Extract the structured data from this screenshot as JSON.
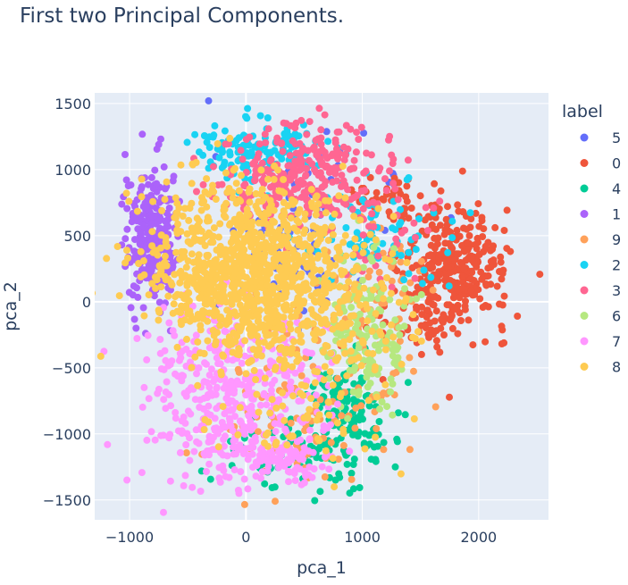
{
  "chart_data": {
    "type": "scatter",
    "title": "First two Principal Components.",
    "xlabel": "pca_1",
    "ylabel": "pca_2",
    "xlim": [
      -1300,
      2600
    ],
    "ylim": [
      -1650,
      1580
    ],
    "xticks": [
      -1000,
      0,
      1000,
      2000
    ],
    "xtick_labels": [
      "−1000",
      "0",
      "1000",
      "2000"
    ],
    "yticks": [
      -1500,
      -1000,
      -500,
      0,
      500,
      1000,
      1500
    ],
    "ytick_labels": [
      "−1500",
      "−1000",
      "−500",
      "0",
      "500",
      "1000",
      "1500"
    ],
    "grid": true,
    "legend": {
      "title": "label",
      "placement": "right"
    },
    "series": [
      {
        "name": "5",
        "color": "#636efa",
        "clusters": [
          {
            "cx": 400,
            "cy": 500,
            "sx": 350,
            "sy": 350,
            "n": 90
          },
          {
            "cx": 1250,
            "cy": 900,
            "sx": 40,
            "sy": 30,
            "n": 4
          }
        ]
      },
      {
        "name": "0",
        "color": "#EF553B",
        "clusters": [
          {
            "cx": 1800,
            "cy": 250,
            "sx": 230,
            "sy": 240,
            "n": 340
          },
          {
            "cx": 1250,
            "cy": 750,
            "sx": 200,
            "sy": 120,
            "n": 40
          },
          {
            "cx": 1400,
            "cy": -200,
            "sx": 150,
            "sy": 120,
            "n": 30
          }
        ]
      },
      {
        "name": "4",
        "color": "#00cc96",
        "clusters": [
          {
            "cx": 850,
            "cy": -850,
            "sx": 200,
            "sy": 250,
            "n": 160
          },
          {
            "cx": 300,
            "cy": -1150,
            "sx": 280,
            "sy": 120,
            "n": 50
          }
        ]
      },
      {
        "name": "1",
        "color": "#ab63fa",
        "clusters": [
          {
            "cx": -820,
            "cy": 480,
            "sx": 110,
            "sy": 260,
            "n": 260
          }
        ]
      },
      {
        "name": "9",
        "color": "#FFA15A",
        "clusters": [
          {
            "cx": 600,
            "cy": -750,
            "sx": 380,
            "sy": 350,
            "n": 120
          },
          {
            "cx": 1100,
            "cy": 100,
            "sx": 200,
            "sy": 280,
            "n": 60
          }
        ]
      },
      {
        "name": "2",
        "color": "#19d3f3",
        "clusters": [
          {
            "cx": 100,
            "cy": 1150,
            "sx": 260,
            "sy": 110,
            "n": 140
          },
          {
            "cx": 1100,
            "cy": 550,
            "sx": 350,
            "sy": 200,
            "n": 80
          }
        ]
      },
      {
        "name": "3",
        "color": "#FF6692",
        "clusters": [
          {
            "cx": 550,
            "cy": 950,
            "sx": 380,
            "sy": 190,
            "n": 300
          },
          {
            "cx": 1150,
            "cy": 500,
            "sx": 180,
            "sy": 180,
            "n": 30
          }
        ]
      },
      {
        "name": "6",
        "color": "#B6E880",
        "clusters": [
          {
            "cx": 1050,
            "cy": -250,
            "sx": 180,
            "sy": 260,
            "n": 160
          }
        ]
      },
      {
        "name": "7",
        "color": "#FF97FF",
        "clusters": [
          {
            "cx": -150,
            "cy": -700,
            "sx": 380,
            "sy": 340,
            "n": 440
          },
          {
            "cx": 250,
            "cy": -1200,
            "sx": 260,
            "sy": 100,
            "n": 90
          }
        ]
      },
      {
        "name": "8",
        "color": "#FECB52",
        "clusters": [
          {
            "cx": 0,
            "cy": 230,
            "sx": 420,
            "sy": 340,
            "n": 1000
          },
          {
            "cx": 700,
            "cy": -150,
            "sx": 360,
            "sy": 300,
            "n": 150
          },
          {
            "cx": 500,
            "cy": -900,
            "sx": 300,
            "sy": 200,
            "n": 40
          }
        ]
      }
    ]
  }
}
